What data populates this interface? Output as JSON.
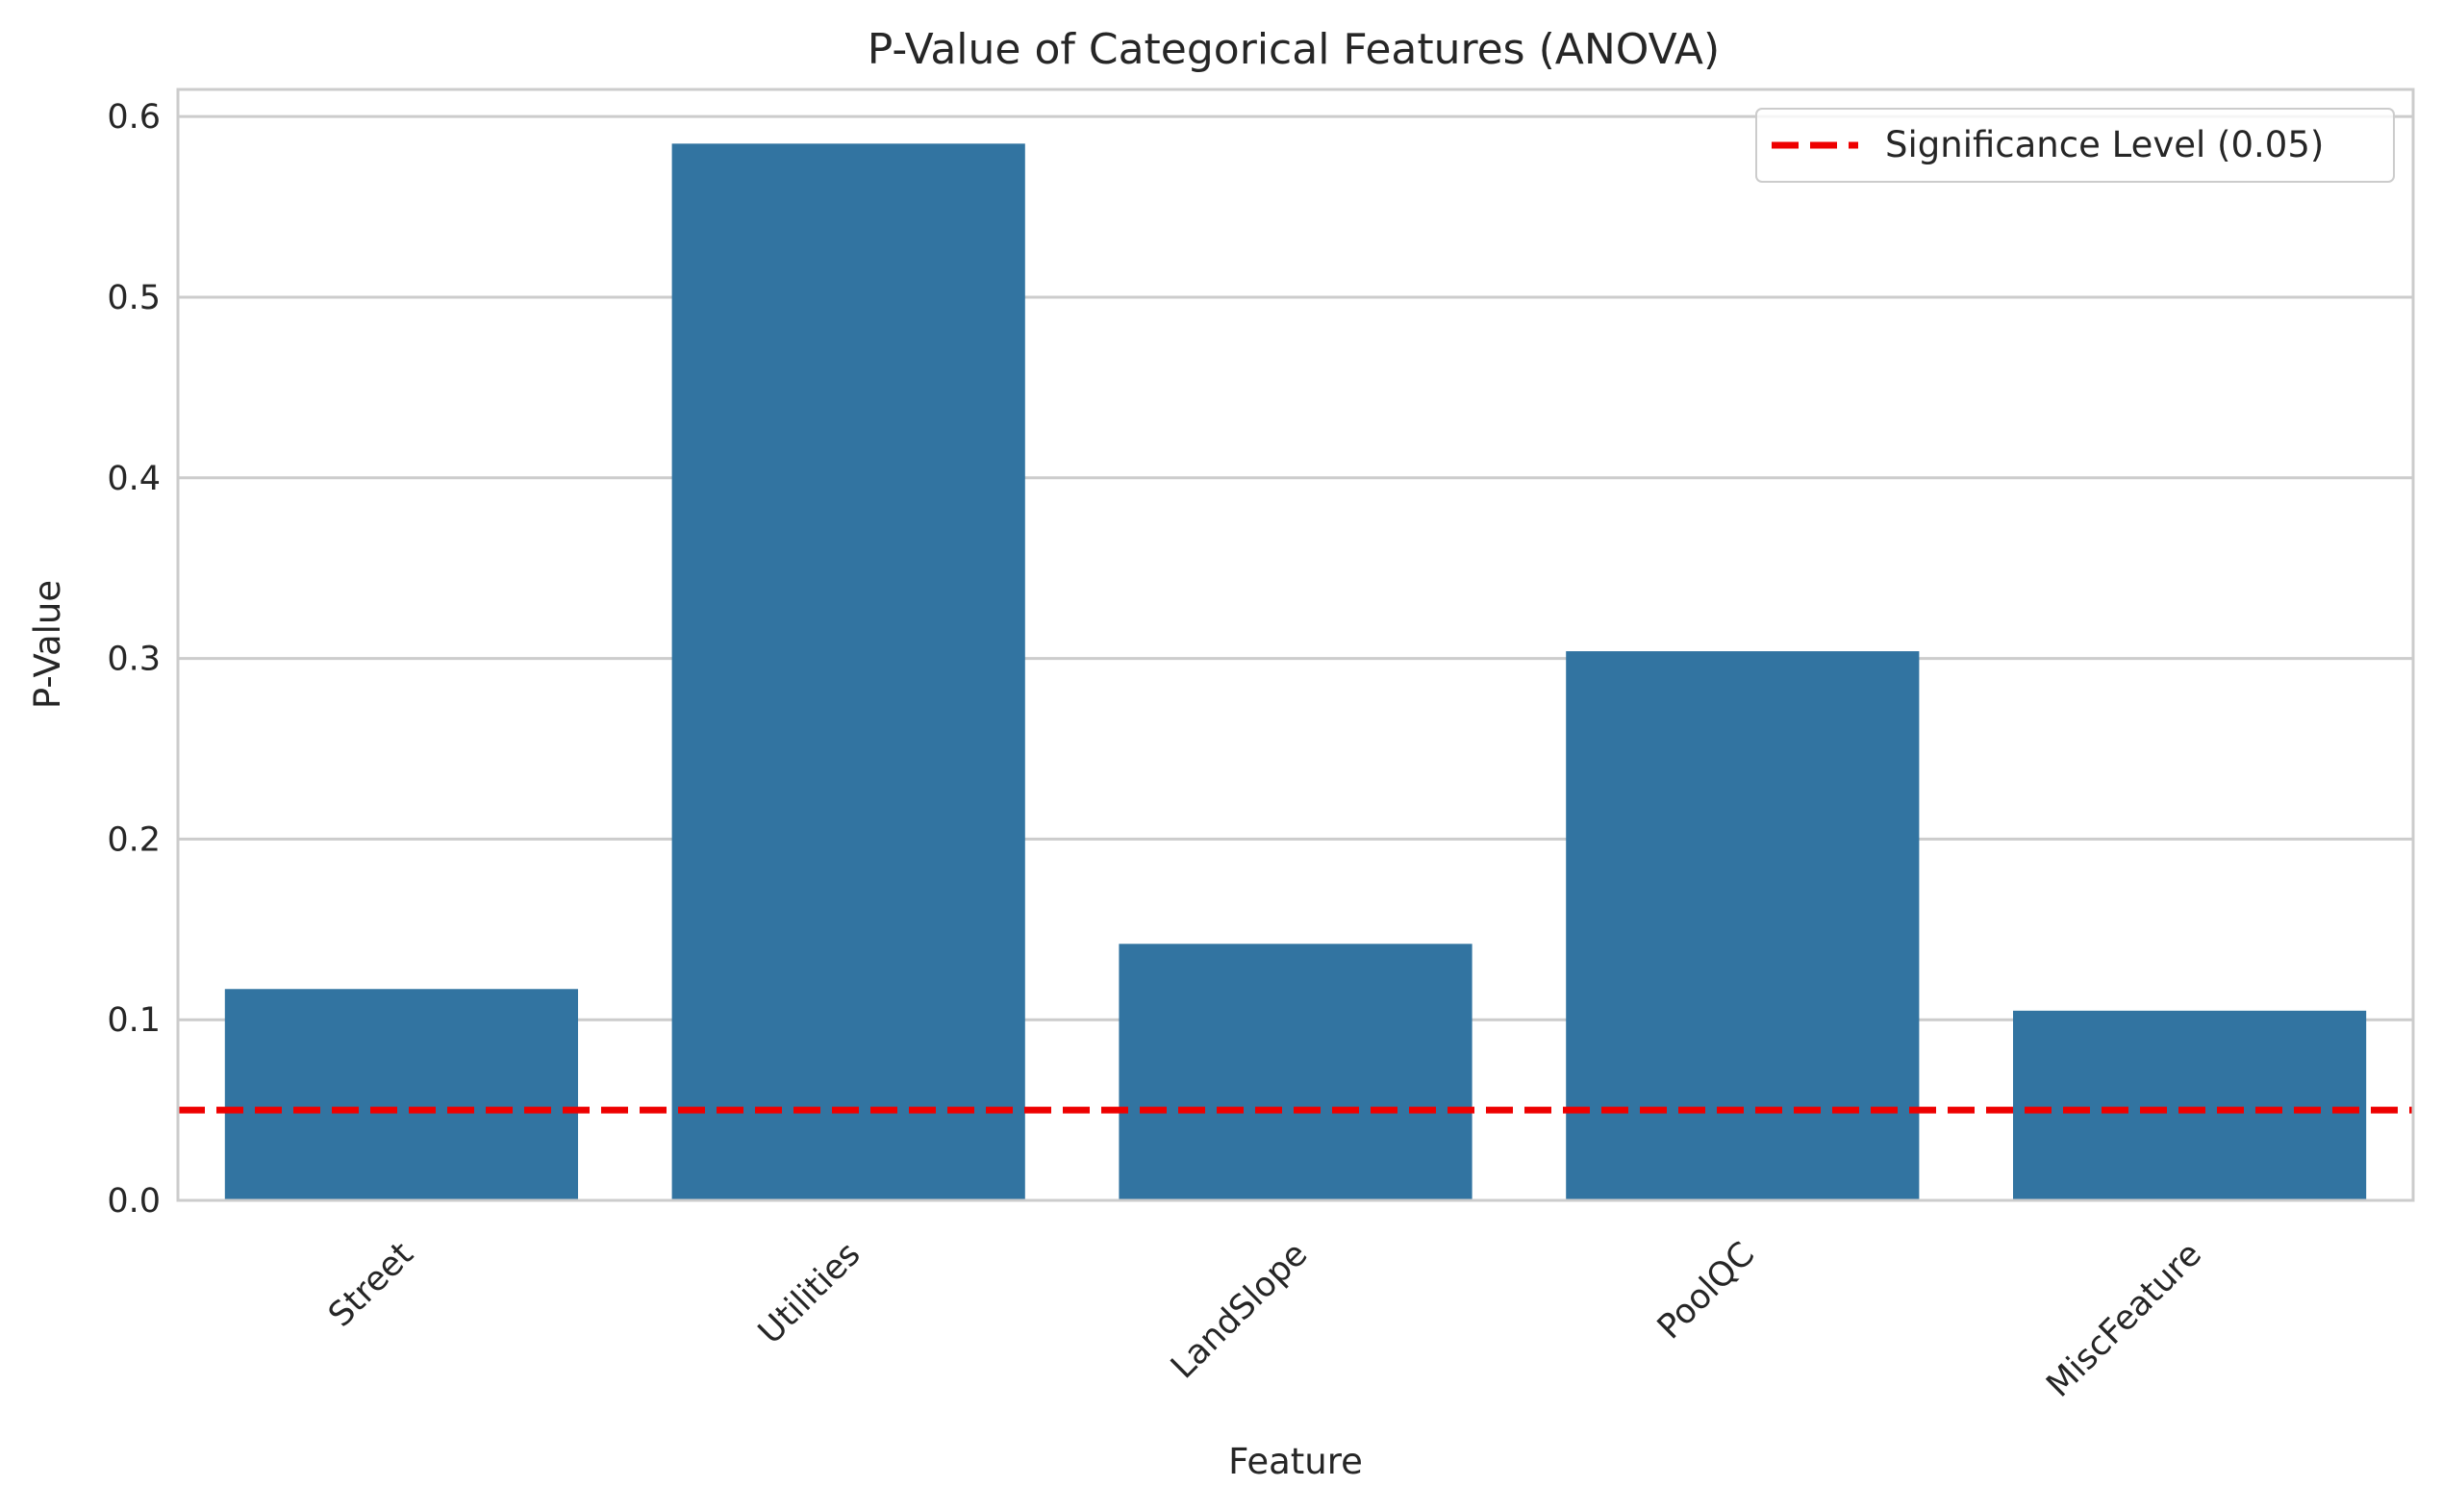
{
  "chart_data": {
    "type": "bar",
    "title": "P-Value of Categorical Features (ANOVA)",
    "xlabel": "Feature",
    "ylabel": "P-Value",
    "categories": [
      "Street",
      "Utilities",
      "LandSlope",
      "PoolQC",
      "MiscFeature"
    ],
    "values": [
      0.117,
      0.585,
      0.142,
      0.304,
      0.105
    ],
    "ylim": [
      0.0,
      0.615
    ],
    "yticks": [
      "0.0",
      "0.1",
      "0.2",
      "0.3",
      "0.4",
      "0.5",
      "0.6"
    ],
    "grid": "horizontal",
    "bar_color": "#3274a1",
    "reference_line": {
      "value": 0.05,
      "label": "Significance Level (0.05)",
      "color": "#ee0000",
      "style": "dashed"
    },
    "legend_position": "top-right"
  }
}
